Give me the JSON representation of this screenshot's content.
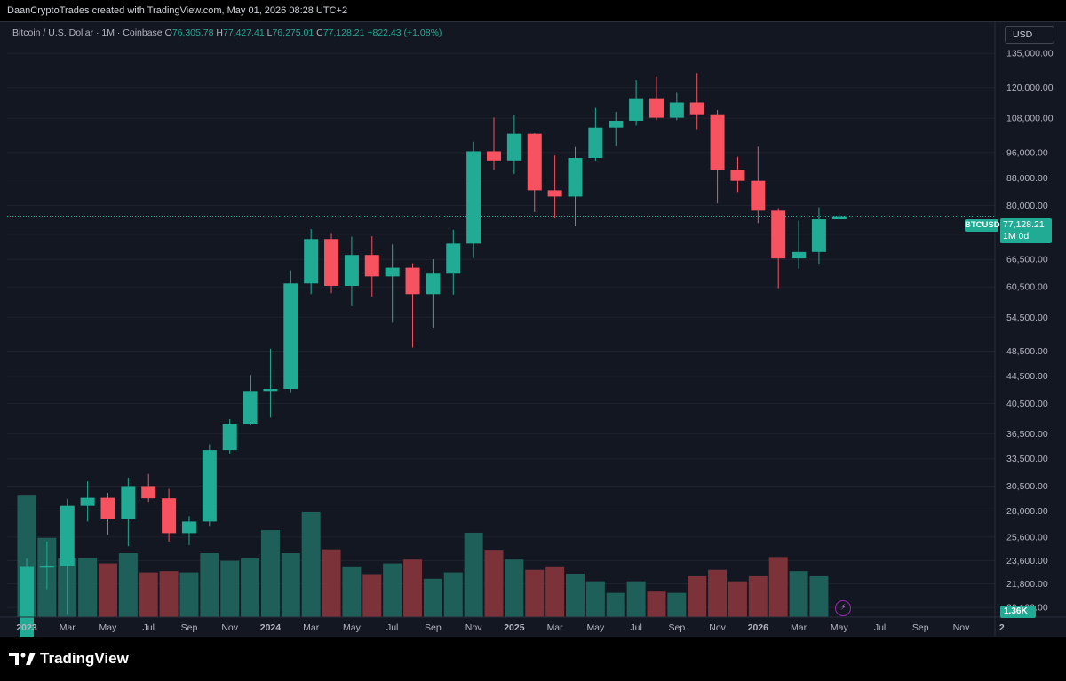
{
  "banner": "DaanCryptoTrades created with TradingView.com, May 01, 2026 08:28 UTC+2",
  "legend": {
    "symbol": "Bitcoin / U.S. Dollar · 1M · Coinbase",
    "open_label": "O",
    "open": "76,305.78",
    "high_label": "H",
    "high": "77,427.41",
    "low_label": "L",
    "low": "76,275.01",
    "close_label": "C",
    "close": "77,128.21",
    "change": "+822.43 (+1.08%)"
  },
  "currency_button": "USD",
  "price_tag": {
    "symbol": "BTCUSD",
    "price": "77,128.21",
    "countdown": "1M 0d"
  },
  "volume_tag": "1.36K",
  "footer": {
    "logo_text": "TradingView"
  },
  "colors": {
    "up": "#22ab94",
    "down": "#f7525f",
    "vol_up": "#1e5f5a",
    "vol_down": "#7b3238",
    "background": "#131722",
    "grid": "#1e222d"
  },
  "chart_data": {
    "type": "candlestick",
    "symbol": "BTCUSD",
    "interval": "1M",
    "price_scale": "log",
    "ylim": [
      19500,
      148000
    ],
    "y_ticks": [
      135000,
      120000,
      108000,
      96000,
      88000,
      80000,
      72500,
      66500,
      60500,
      54500,
      48500,
      44500,
      40500,
      36500,
      33500,
      30500,
      28000,
      25600,
      23600,
      21800,
      20100
    ],
    "y_tick_labels": [
      "135,000.00",
      "120,000.00",
      "108,000.00",
      "96,000.00",
      "88,000.00",
      "80,000.00",
      "72,500.00",
      "66,500.00",
      "60,500.00",
      "54,500.00",
      "48,500.00",
      "44,500.00",
      "40,500.00",
      "36,500.00",
      "33,500.00",
      "30,500.00",
      "28,000.00",
      "25,600.00",
      "23,600.00",
      "21,800.00",
      "20,100.00"
    ],
    "x_labels": [
      {
        "text": "2023",
        "month_index": 0,
        "bold": true
      },
      {
        "text": "Mar",
        "month_index": 2
      },
      {
        "text": "May",
        "month_index": 4
      },
      {
        "text": "Jul",
        "month_index": 6
      },
      {
        "text": "Sep",
        "month_index": 8
      },
      {
        "text": "Nov",
        "month_index": 10
      },
      {
        "text": "2024",
        "month_index": 12,
        "bold": true
      },
      {
        "text": "Mar",
        "month_index": 14
      },
      {
        "text": "May",
        "month_index": 16
      },
      {
        "text": "Jul",
        "month_index": 18
      },
      {
        "text": "Sep",
        "month_index": 20
      },
      {
        "text": "Nov",
        "month_index": 22
      },
      {
        "text": "2025",
        "month_index": 24,
        "bold": true
      },
      {
        "text": "Mar",
        "month_index": 26
      },
      {
        "text": "May",
        "month_index": 28
      },
      {
        "text": "Jul",
        "month_index": 30
      },
      {
        "text": "Sep",
        "month_index": 32
      },
      {
        "text": "Nov",
        "month_index": 34
      },
      {
        "text": "2026",
        "month_index": 36,
        "bold": true
      },
      {
        "text": "Mar",
        "month_index": 38
      },
      {
        "text": "May",
        "month_index": 40
      },
      {
        "text": "Jul",
        "month_index": 42
      },
      {
        "text": "Sep",
        "month_index": 44
      },
      {
        "text": "Nov",
        "month_index": 46
      },
      {
        "text": "2",
        "month_index": 48,
        "bold": true
      }
    ],
    "last_price": 77128.21,
    "candles": [
      {
        "m": "2023-01",
        "o": 16600,
        "h": 23800,
        "l": 16500,
        "c": 23100
      },
      {
        "m": "2023-02",
        "o": 23100,
        "h": 25200,
        "l": 21400,
        "c": 23150
      },
      {
        "m": "2023-03",
        "o": 23150,
        "h": 29200,
        "l": 19600,
        "c": 28500
      },
      {
        "m": "2023-04",
        "o": 28500,
        "h": 31000,
        "l": 27000,
        "c": 29300
      },
      {
        "m": "2023-05",
        "o": 29300,
        "h": 29800,
        "l": 25800,
        "c": 27200
      },
      {
        "m": "2023-06",
        "o": 27200,
        "h": 31400,
        "l": 24800,
        "c": 30500
      },
      {
        "m": "2023-07",
        "o": 30500,
        "h": 31800,
        "l": 28900,
        "c": 29250
      },
      {
        "m": "2023-08",
        "o": 29250,
        "h": 30200,
        "l": 25200,
        "c": 25950
      },
      {
        "m": "2023-09",
        "o": 25950,
        "h": 27500,
        "l": 24900,
        "c": 27000
      },
      {
        "m": "2023-10",
        "o": 27000,
        "h": 35200,
        "l": 26600,
        "c": 34500
      },
      {
        "m": "2023-11",
        "o": 34500,
        "h": 38400,
        "l": 34100,
        "c": 37700
      },
      {
        "m": "2023-12",
        "o": 37700,
        "h": 44700,
        "l": 37600,
        "c": 42300
      },
      {
        "m": "2024-01",
        "o": 42300,
        "h": 48900,
        "l": 38600,
        "c": 42600
      },
      {
        "m": "2024-02",
        "o": 42600,
        "h": 64000,
        "l": 42000,
        "c": 61200
      },
      {
        "m": "2024-03",
        "o": 61200,
        "h": 73800,
        "l": 59000,
        "c": 71300
      },
      {
        "m": "2024-04",
        "o": 71300,
        "h": 72800,
        "l": 59200,
        "c": 60700
      },
      {
        "m": "2024-05",
        "o": 60700,
        "h": 71900,
        "l": 56600,
        "c": 67500
      },
      {
        "m": "2024-06",
        "o": 67500,
        "h": 72000,
        "l": 58500,
        "c": 62700
      },
      {
        "m": "2024-07",
        "o": 62700,
        "h": 70000,
        "l": 53500,
        "c": 64600
      },
      {
        "m": "2024-08",
        "o": 64600,
        "h": 65600,
        "l": 49100,
        "c": 59000
      },
      {
        "m": "2024-09",
        "o": 59000,
        "h": 66500,
        "l": 52600,
        "c": 63300
      },
      {
        "m": "2024-10",
        "o": 63300,
        "h": 73600,
        "l": 58900,
        "c": 70200
      },
      {
        "m": "2024-11",
        "o": 70200,
        "h": 99600,
        "l": 66800,
        "c": 96400
      },
      {
        "m": "2024-12",
        "o": 96400,
        "h": 108300,
        "l": 90500,
        "c": 93400
      },
      {
        "m": "2025-01",
        "o": 93400,
        "h": 109300,
        "l": 89200,
        "c": 102400
      },
      {
        "m": "2025-02",
        "o": 102400,
        "h": 102600,
        "l": 78200,
        "c": 84300
      },
      {
        "m": "2025-03",
        "o": 84300,
        "h": 95000,
        "l": 76600,
        "c": 82500
      },
      {
        "m": "2025-04",
        "o": 82500,
        "h": 97800,
        "l": 74500,
        "c": 94200
      },
      {
        "m": "2025-05",
        "o": 94200,
        "h": 111900,
        "l": 93300,
        "c": 104600
      },
      {
        "m": "2025-06",
        "o": 104600,
        "h": 110400,
        "l": 98200,
        "c": 107100
      },
      {
        "m": "2025-07",
        "o": 107100,
        "h": 123200,
        "l": 105300,
        "c": 115700
      },
      {
        "m": "2025-08",
        "o": 115700,
        "h": 124500,
        "l": 107300,
        "c": 108200
      },
      {
        "m": "2025-09",
        "o": 108200,
        "h": 117900,
        "l": 107300,
        "c": 114000
      },
      {
        "m": "2025-10",
        "o": 114000,
        "h": 126200,
        "l": 104000,
        "c": 109500
      },
      {
        "m": "2025-11",
        "o": 109500,
        "h": 111100,
        "l": 80600,
        "c": 90400
      },
      {
        "m": "2025-12",
        "o": 90400,
        "h": 94600,
        "l": 83800,
        "c": 87100
      },
      {
        "m": "2026-01",
        "o": 87100,
        "h": 97900,
        "l": 75300,
        "c": 78600
      },
      {
        "m": "2026-02",
        "o": 78600,
        "h": 79300,
        "l": 60200,
        "c": 66700
      },
      {
        "m": "2026-03",
        "o": 66700,
        "h": 76000,
        "l": 64400,
        "c": 68200
      },
      {
        "m": "2026-04",
        "o": 68200,
        "h": 79500,
        "l": 65500,
        "c": 76305.78
      },
      {
        "m": "2026-05",
        "o": 76305.78,
        "h": 77427.41,
        "l": 76275.01,
        "c": 77128.21
      }
    ],
    "volume_relative": [
      0.95,
      0.62,
      0.46,
      0.46,
      0.42,
      0.5,
      0.35,
      0.36,
      0.35,
      0.5,
      0.44,
      0.46,
      0.68,
      0.5,
      0.82,
      0.53,
      0.39,
      0.33,
      0.42,
      0.45,
      0.3,
      0.35,
      0.66,
      0.52,
      0.45,
      0.37,
      0.39,
      0.34,
      0.28,
      0.19,
      0.28,
      0.2,
      0.19,
      0.32,
      0.37,
      0.28,
      0.32,
      0.47,
      0.36,
      0.32,
      0.0
    ]
  }
}
